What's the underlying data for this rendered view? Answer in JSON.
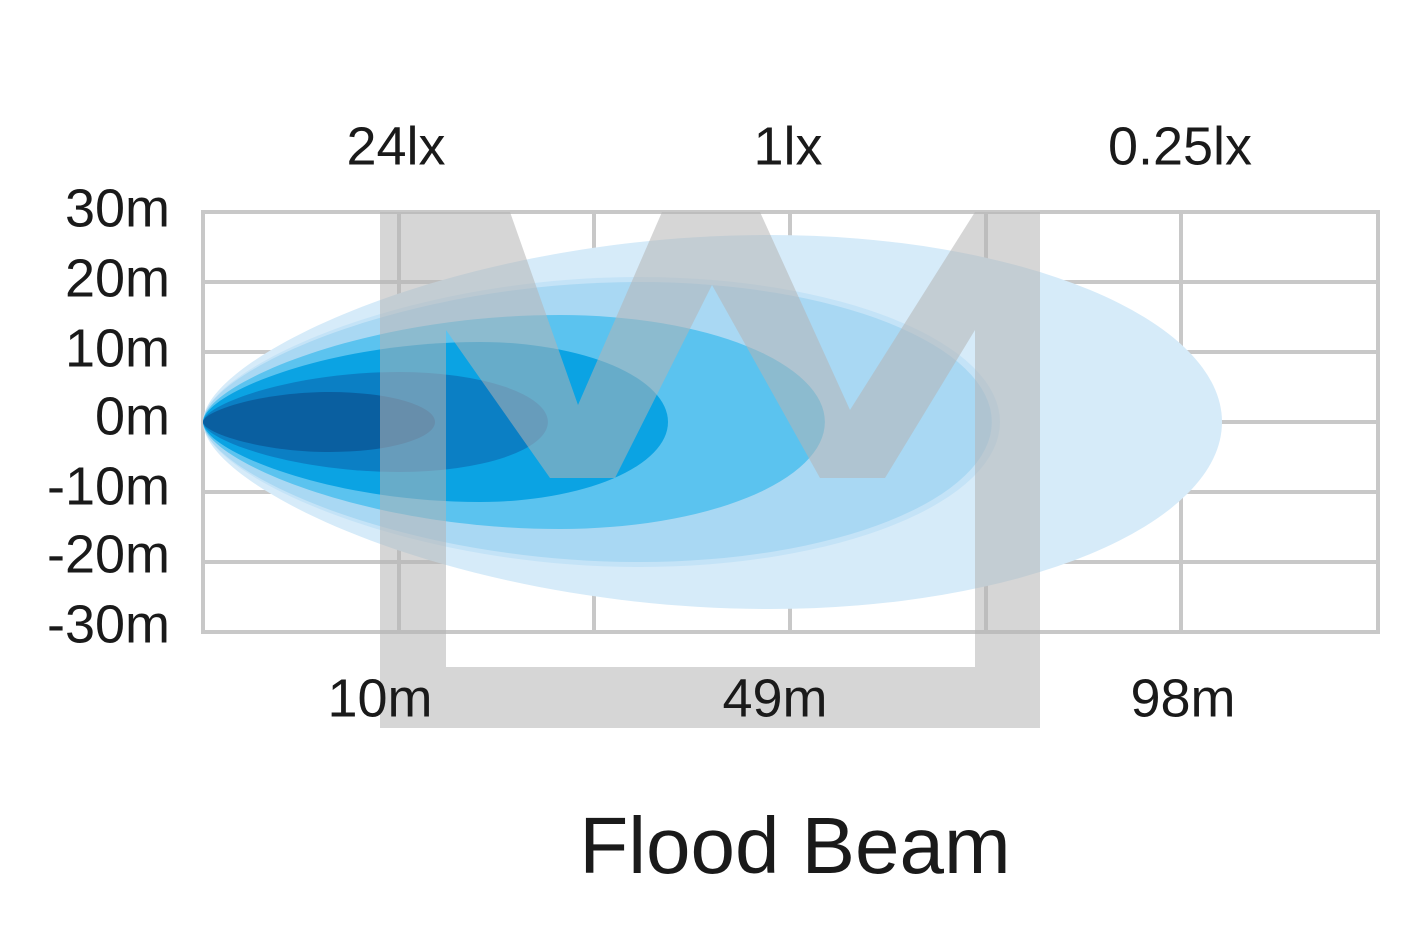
{
  "lux_labels": [
    "24lx",
    "1lx",
    "0.25lx"
  ],
  "y_axis_labels": [
    "30m",
    "20m",
    "10m",
    "0m",
    "-10m",
    "-20m",
    "-30m"
  ],
  "distance_labels": [
    "10m",
    "49m",
    "98m"
  ],
  "title": "Flood Beam"
}
